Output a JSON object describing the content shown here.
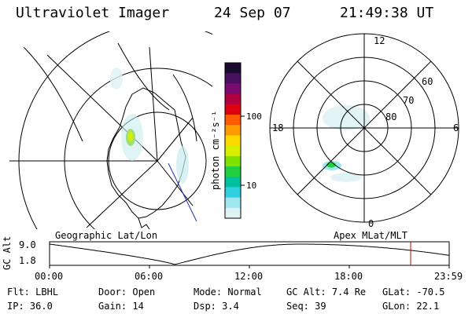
{
  "header": {
    "instrument": "Ultraviolet Imager",
    "date": "24 Sep 07",
    "time": "21:49:38 UT"
  },
  "colorbar": {
    "unit_label": "photon cm⁻²s⁻¹",
    "ticks": [
      "100",
      "10"
    ],
    "colors": [
      "#1b0a30",
      "#4a1060",
      "#7a0a70",
      "#b00040",
      "#e00010",
      "#ff5a00",
      "#ff9a00",
      "#ffd800",
      "#d8f000",
      "#80e000",
      "#20d040",
      "#00c0a0",
      "#30d0e0",
      "#a0e8f0",
      "#dff2f4"
    ]
  },
  "left_panel": {
    "projection_label": "Geographic Lat/Lon"
  },
  "right_panel": {
    "projection_label": "Apex MLat/MLT",
    "mlt_labels": {
      "top": "12",
      "left": "18",
      "right": "6",
      "bottom": "0"
    },
    "lat_labels": [
      "60",
      "70",
      "80"
    ]
  },
  "altitude_plot": {
    "ylabel": "GC Alt",
    "yticks": [
      "9.0",
      "1.8"
    ],
    "xticks": [
      "00:00",
      "06:00",
      "12:00",
      "18:00",
      "23:59"
    ],
    "marker_color": "#c00000"
  },
  "info": {
    "filter": {
      "label": "Flt:",
      "value": "LBHL"
    },
    "ip": {
      "label": "IP:",
      "value": "36.0"
    },
    "door": {
      "label": "Door:",
      "value": "Open"
    },
    "gain": {
      "label": "Gain:",
      "value": "14"
    },
    "mode": {
      "label": "Mode:",
      "value": "Normal"
    },
    "dsp": {
      "label": "Dsp:",
      "value": "3.4"
    },
    "gc_alt": {
      "label": "GC Alt:",
      "value": "7.4 Re"
    },
    "seq": {
      "label": "Seq:",
      "value": "39"
    },
    "glat": {
      "label": "GLat:",
      "value": "-70.5"
    },
    "glon": {
      "label": "GLon:",
      "value": "22.1"
    }
  }
}
